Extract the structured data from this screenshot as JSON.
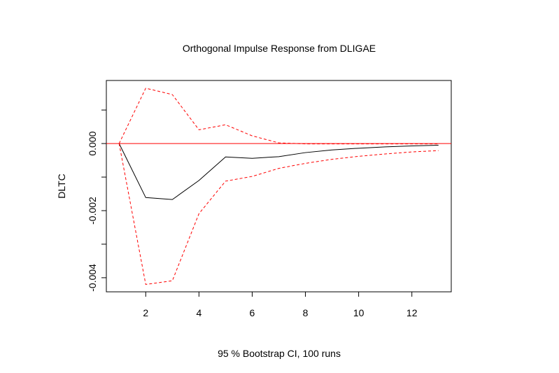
{
  "chart_data": {
    "type": "line",
    "title": "Orthogonal Impulse Response from DLIGAE",
    "xlabel": "95 % Bootstrap CI,  100 runs",
    "ylabel": "DLTC",
    "xlim": [
      0.52,
      13.48
    ],
    "ylim": [
      -0.00442,
      0.00188
    ],
    "x_ticks": [
      2,
      4,
      6,
      8,
      10,
      12
    ],
    "x_tick_labels": [
      "2",
      "4",
      "6",
      "8",
      "10",
      "12"
    ],
    "y_ticks": [
      -0.004,
      -0.003,
      -0.002,
      -0.001,
      0.0,
      0.001
    ],
    "y_tick_labels": [
      "-0.004",
      "",
      "-0.002",
      "",
      "0.000",
      ""
    ],
    "grid": false,
    "zero_line": {
      "y": 0,
      "color": "#ff0000"
    },
    "x": [
      1,
      2,
      3,
      4,
      5,
      6,
      7,
      8,
      9,
      10,
      11,
      12,
      13
    ],
    "series": [
      {
        "color": "#000000",
        "dash": "solid",
        "values": [
          0.0,
          -0.00161,
          -0.00167,
          -0.0011,
          -0.0004,
          -0.00044,
          -0.00039,
          -0.00027,
          -0.00019,
          -0.00014,
          -0.0001,
          -7e-05,
          -5e-05
        ]
      },
      {
        "color": "#ff0000",
        "dash": "dashed",
        "values": [
          0.0,
          0.00165,
          0.00146,
          0.00041,
          0.00056,
          0.00023,
          2e-05,
          -1e-05,
          -1e-05,
          -1e-05,
          -1e-05,
          -1e-05,
          -1e-05
        ]
      },
      {
        "color": "#ff0000",
        "dash": "dashed",
        "values": [
          0.0,
          -0.0042,
          -0.00409,
          -0.00209,
          -0.00112,
          -0.00098,
          -0.00074,
          -0.00059,
          -0.00047,
          -0.00038,
          -0.00031,
          -0.00025,
          -0.00021
        ]
      }
    ]
  }
}
